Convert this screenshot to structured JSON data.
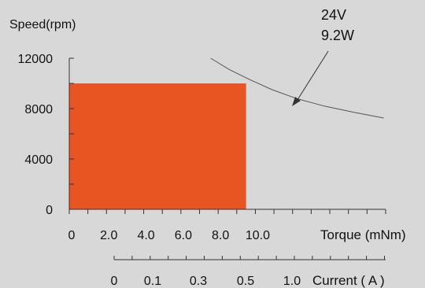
{
  "chart_data": {
    "type": "area",
    "ylabel": "Speed(rpm)",
    "xlabel": "Torque (mNm)",
    "x2label": "Current ( A )",
    "annotation": [
      "24V",
      "9.2W"
    ],
    "colors": {
      "background": "#d8d8d8",
      "region": "#e85522",
      "curve": "#555555",
      "axis": "#333333"
    },
    "ylim": [
      0,
      12000
    ],
    "yticks": [
      "12000",
      "8000",
      "4000",
      "0"
    ],
    "xlim": [
      0,
      17
    ],
    "xticks": [
      "0",
      "2.0",
      "4.0",
      "6.0",
      "8.0",
      "10.0"
    ],
    "current_ticks": [
      "0",
      "0.1",
      "0.3",
      "0.5",
      "1.0"
    ],
    "operating_region": {
      "torque_max": 9.5,
      "speed_max": 10000
    },
    "power_curve": {
      "x": [
        7.6,
        8.6,
        9.7,
        10.9,
        12.2,
        13.7,
        15.3,
        16.9
      ],
      "y": [
        12000,
        11100,
        10300,
        9500,
        8800,
        8200,
        7700,
        7250
      ]
    }
  }
}
